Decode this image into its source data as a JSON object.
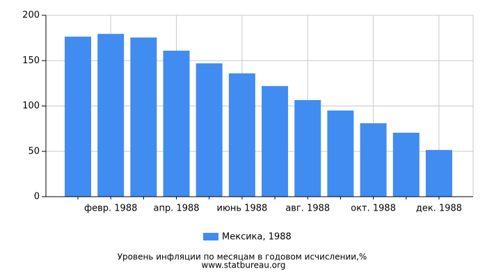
{
  "chart_data": {
    "type": "bar",
    "categories": [
      null,
      "февр. 1988",
      null,
      "апр. 1988",
      null,
      "июнь 1988",
      null,
      "авг. 1988",
      null,
      "окт. 1988",
      null,
      "дек. 1988"
    ],
    "series": [
      {
        "name": "Мексика, 1988",
        "color": "#418cf0",
        "values": [
          176.5,
          179.5,
          175.5,
          161,
          147,
          136,
          122,
          106.5,
          95,
          81,
          70.5,
          51.5
        ]
      }
    ],
    "ylim": [
      0,
      200
    ],
    "yticks": [
      0,
      50,
      100,
      150,
      200
    ],
    "grid": true,
    "caption": "Уровень инфляции по месяцам в годовом исчислении,%",
    "source": "www.statbureau.org"
  }
}
